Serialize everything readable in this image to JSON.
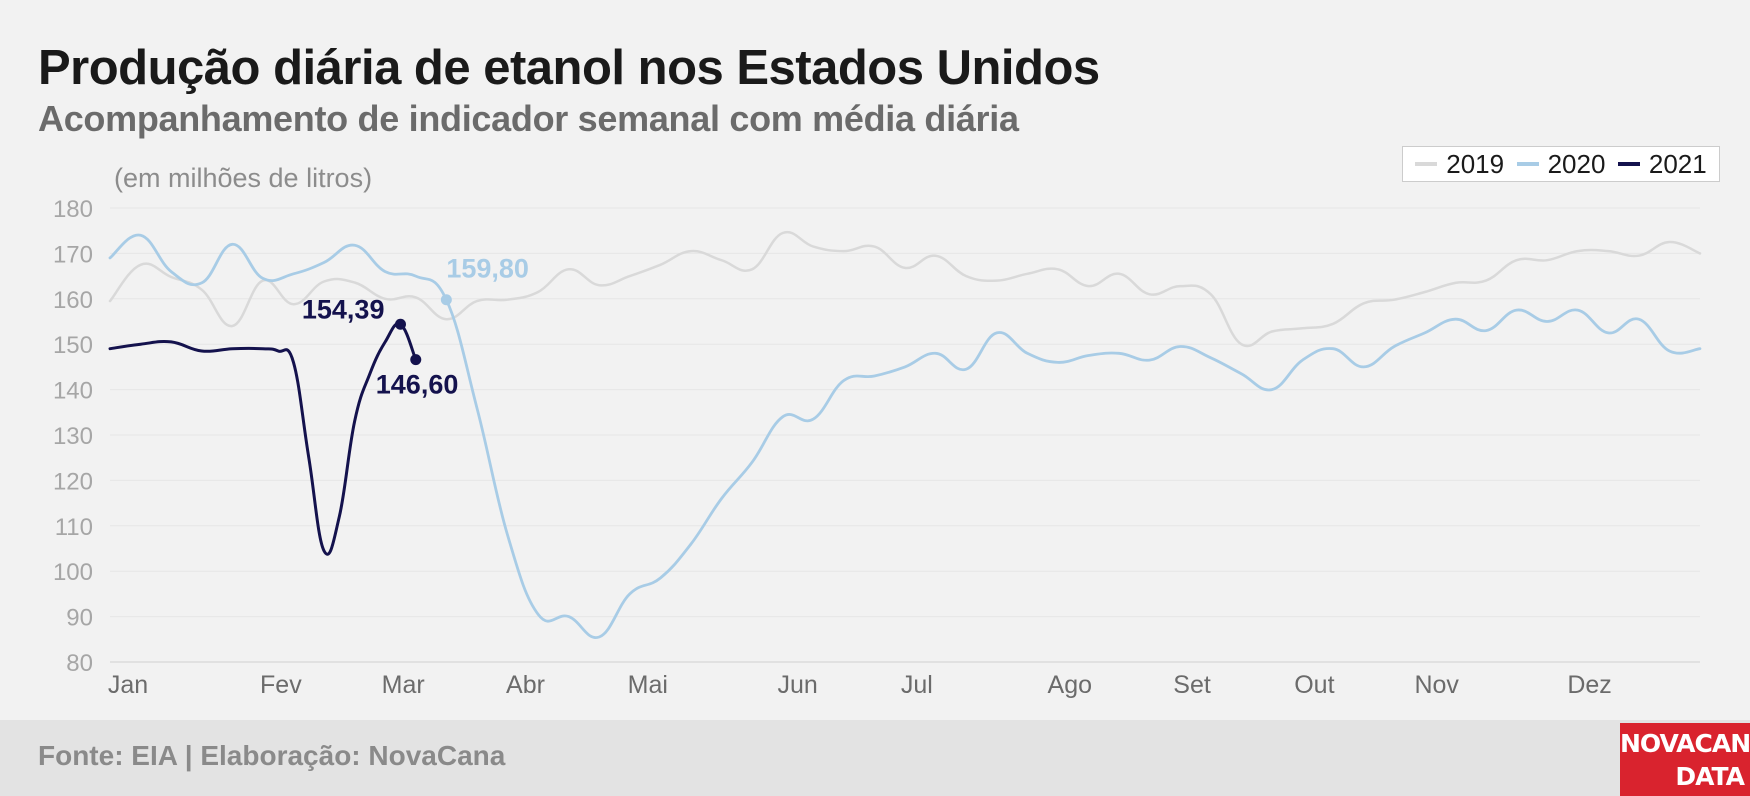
{
  "header": {
    "title": "Produção diária de etanol nos Estados Unidos",
    "subtitle": "Acompanhamento de indicador semanal com média diária",
    "unit": "(em milhões de litros)"
  },
  "footer": {
    "source": "Fonte: EIA | Elaboração: NovaCana",
    "logo_line1": "NOVACANA",
    "logo_line2": "DATA"
  },
  "colors": {
    "2019": "#d9d9d9",
    "2020": "#a8cce6",
    "2021": "#14124d",
    "background": "#f2f2f2",
    "grid": "#e6e6e6",
    "logo": "#d9232e"
  },
  "chart_data": {
    "type": "line",
    "title": "Produção diária de etanol nos Estados Unidos",
    "ylabel": "(em milhões de litros)",
    "ylim": [
      80,
      180
    ],
    "yticks": [
      80,
      90,
      100,
      110,
      120,
      130,
      140,
      150,
      160,
      170,
      180
    ],
    "xlim": [
      1,
      53
    ],
    "x_axis": "week of year",
    "month_labels": [
      {
        "label": "Jan",
        "week": 1.0
      },
      {
        "label": "Fev",
        "week": 6.0
      },
      {
        "label": "Mar",
        "week": 10.0
      },
      {
        "label": "Abr",
        "week": 14.0
      },
      {
        "label": "Mai",
        "week": 18.0
      },
      {
        "label": "Jun",
        "week": 22.9
      },
      {
        "label": "Jul",
        "week": 26.8
      },
      {
        "label": "Ago",
        "week": 31.8
      },
      {
        "label": "Set",
        "week": 35.8
      },
      {
        "label": "Out",
        "week": 39.8
      },
      {
        "label": "Nov",
        "week": 43.8
      },
      {
        "label": "Dez",
        "week": 48.8
      }
    ],
    "grid": true,
    "legend": "top-right",
    "series": [
      {
        "name": "2019",
        "x": [
          1,
          2,
          3,
          4,
          5,
          6,
          7,
          8,
          9,
          10,
          11,
          12,
          13,
          14,
          15,
          16,
          17,
          18,
          19,
          20,
          21,
          22,
          23,
          24,
          25,
          26,
          27,
          28,
          29,
          30,
          31,
          32,
          33,
          34,
          35,
          36,
          37,
          38,
          39,
          40,
          41,
          42,
          43,
          44,
          45,
          46,
          47,
          48,
          49,
          50,
          51,
          52,
          53
        ],
        "values": [
          159.5,
          167.5,
          164.8,
          162.0,
          154.0,
          164.0,
          158.8,
          163.8,
          163.6,
          160.0,
          160.3,
          155.5,
          159.5,
          159.8,
          161.5,
          166.5,
          163.0,
          165.0,
          167.5,
          170.5,
          168.5,
          166.5,
          174.5,
          171.5,
          170.5,
          171.5,
          166.8,
          169.5,
          165.0,
          164.0,
          165.5,
          166.5,
          162.8,
          165.5,
          161.0,
          162.8,
          161.0,
          150.0,
          152.8,
          153.5,
          154.5,
          159.0,
          159.8,
          161.5,
          163.5,
          164.0,
          168.5,
          168.5,
          170.5,
          170.5,
          169.5,
          172.5,
          170.0
        ]
      },
      {
        "name": "2020",
        "x": [
          1,
          2,
          3,
          4,
          5,
          6,
          7,
          8,
          9,
          10,
          11,
          12,
          13,
          14,
          15,
          16,
          17,
          18,
          19,
          20,
          21,
          22,
          23,
          24,
          25,
          26,
          27,
          28,
          29,
          30,
          31,
          32,
          33,
          34,
          35,
          36,
          37,
          38,
          39,
          40,
          41,
          42,
          43,
          44,
          45,
          46,
          47,
          48,
          49,
          50,
          51,
          52,
          53
        ],
        "values": [
          169.0,
          174.0,
          166.0,
          163.5,
          172.0,
          164.5,
          165.5,
          168.0,
          171.8,
          166.0,
          165.0,
          159.8,
          136.0,
          108.0,
          90.5,
          90.0,
          85.5,
          95.0,
          98.5,
          106.0,
          116.0,
          124.0,
          134.0,
          133.5,
          142.0,
          143.0,
          145.0,
          148.0,
          144.5,
          152.5,
          148.0,
          146.0,
          147.5,
          148.0,
          146.5,
          149.5,
          147.0,
          143.5,
          140.0,
          146.5,
          149.0,
          145.0,
          149.5,
          152.5,
          155.5,
          153.0,
          157.5,
          155.0,
          157.5,
          152.5,
          155.5,
          148.5,
          149.0
        ]
      },
      {
        "name": "2021",
        "x": [
          1,
          2,
          3,
          4,
          5,
          6,
          6.5,
          7,
          7.5,
          8,
          8.5,
          9,
          9.5,
          10,
          10.5,
          11
        ],
        "values": [
          149.0,
          150.0,
          150.5,
          148.5,
          149.0,
          149.0,
          148.5,
          146.0,
          125.0,
          104.5,
          112.0,
          133.0,
          143.5,
          150.5,
          154.39,
          146.6
        ]
      }
    ],
    "annotations": [
      {
        "series": "2020",
        "x": 12,
        "value": 159.8,
        "label": "159,80"
      },
      {
        "series": "2021",
        "x": 10.5,
        "value": 154.39,
        "label": "154,39"
      },
      {
        "series": "2021",
        "x": 11,
        "value": 146.6,
        "label": "146,60"
      }
    ]
  }
}
